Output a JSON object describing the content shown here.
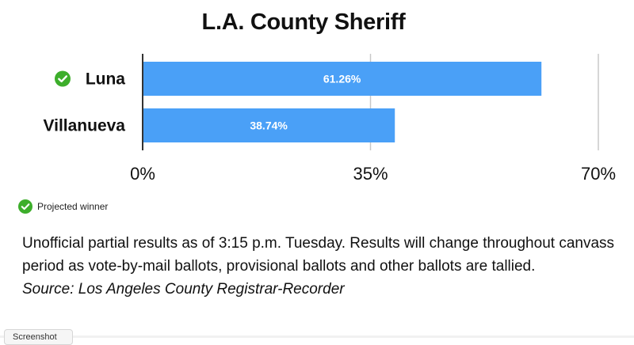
{
  "chart_data": {
    "type": "bar",
    "orientation": "horizontal",
    "title": "L.A. County Sheriff",
    "categories": [
      "Luna",
      "Villanueva"
    ],
    "values": [
      61.26,
      38.74
    ],
    "data_labels": [
      "61.26%",
      "38.74%"
    ],
    "winner": "Luna",
    "xlabel": "",
    "ylabel": "",
    "xlim": [
      0,
      70
    ],
    "x_ticks": [
      0,
      35,
      70
    ],
    "x_tick_labels": [
      "0%",
      "35%",
      "70%"
    ],
    "grid": true,
    "bar_color": "#4aa0f7",
    "winner_icon_color": "#3dae2b",
    "legend": {
      "placement": "bottom-left",
      "entries": [
        {
          "icon": "check-circle-icon",
          "label": "Projected winner"
        }
      ]
    }
  },
  "legend": {
    "label": "Projected winner"
  },
  "notes": {
    "text": "Unofficial partial results as of 3:15 p.m. Tuesday. Results will change throughout canvass period as vote-by-mail ballots, provisional ballots and other ballots are tallied.",
    "source": "Source: Los Angeles County Registrar-Recorder"
  },
  "footer": {
    "button_label": "Screenshot"
  }
}
